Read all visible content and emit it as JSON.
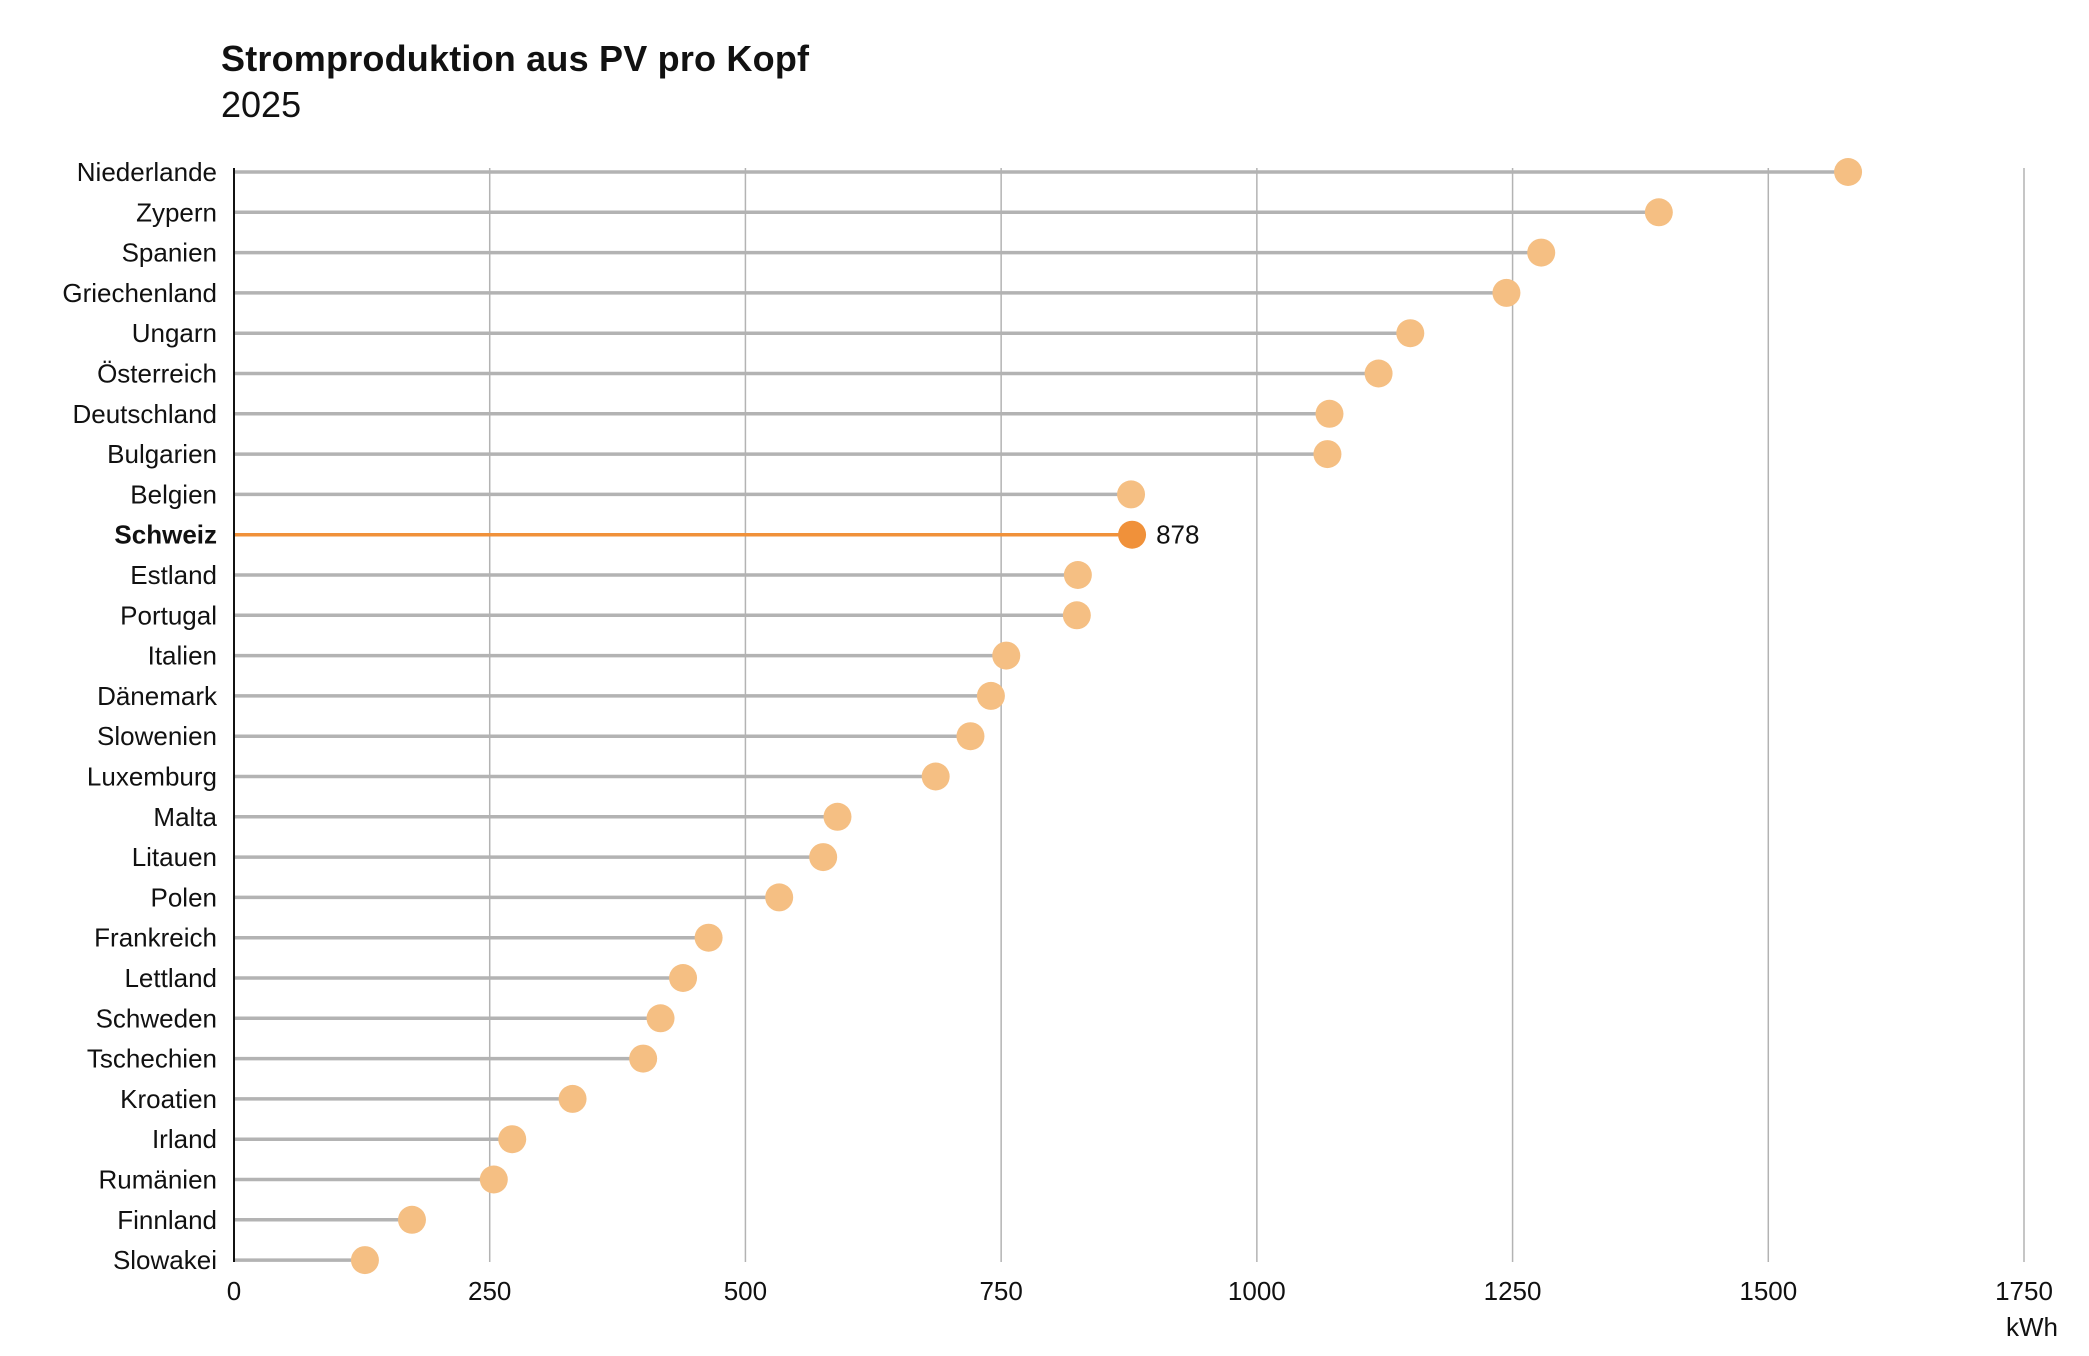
{
  "chart_data": {
    "type": "lollipop",
    "title": "Stromproduktion aus PV pro Kopf",
    "subtitle": "2025",
    "xlabel": "kWh",
    "ylabel": "",
    "xlim": [
      0,
      1750
    ],
    "xticks": [
      0,
      250,
      500,
      750,
      1000,
      1250,
      1500,
      1750
    ],
    "grid": "vertical",
    "highlight": "Schweiz",
    "highlight_value_label": "878",
    "colors": {
      "dot": "#f5bf83",
      "dot_highlight": "#f0913a",
      "stem": "#b3b3b3",
      "stem_highlight": "#f0913a",
      "grid": "#b3b3b3",
      "axis": "#111111"
    },
    "categories": [
      "Niederlande",
      "Zypern",
      "Spanien",
      "Griechenland",
      "Ungarn",
      "Österreich",
      "Deutschland",
      "Bulgarien",
      "Belgien",
      "Schweiz",
      "Estland",
      "Portugal",
      "Italien",
      "Dänemark",
      "Slowenien",
      "Luxemburg",
      "Malta",
      "Litauen",
      "Polen",
      "Frankreich",
      "Lettland",
      "Schweden",
      "Tschechien",
      "Kroatien",
      "Irland",
      "Rumänien",
      "Finnland",
      "Slowakei"
    ],
    "values": [
      1578,
      1393,
      1278,
      1244,
      1150,
      1119,
      1071,
      1069,
      877,
      878,
      825,
      824,
      755,
      740,
      720,
      686,
      590,
      576,
      533,
      464,
      439,
      417,
      400,
      331,
      272,
      254,
      174,
      128
    ]
  }
}
